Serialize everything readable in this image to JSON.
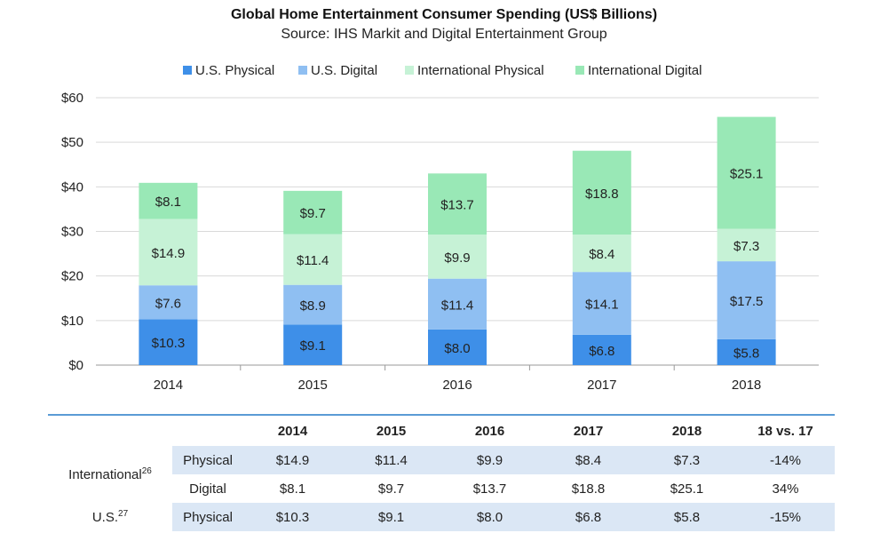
{
  "chart_data": {
    "type": "bar",
    "stacked": true,
    "title": "Global Home Entertainment Consumer Spending (US$ Billions)",
    "subtitle": "Source: IHS Markit and Digital Entertainment Group",
    "categories": [
      "2014",
      "2015",
      "2016",
      "2017",
      "2018"
    ],
    "series": [
      {
        "name": "U.S. Physical",
        "color": "#3e8fe8",
        "values": [
          10.3,
          9.1,
          8.0,
          6.8,
          5.8
        ],
        "labels": [
          "$10.3",
          "$9.1",
          "$8.0",
          "$6.8",
          "$5.8"
        ]
      },
      {
        "name": "U.S. Digital",
        "color": "#8fbff2",
        "values": [
          7.6,
          8.9,
          11.4,
          14.1,
          17.5
        ],
        "labels": [
          "$7.6",
          "$8.9",
          "$11.4",
          "$14.1",
          "$17.5"
        ]
      },
      {
        "name": "International Physical",
        "color": "#c6f2d6",
        "values": [
          14.9,
          11.4,
          9.9,
          8.4,
          7.3
        ],
        "labels": [
          "$14.9",
          "$11.4",
          "$9.9",
          "$8.4",
          "$7.3"
        ]
      },
      {
        "name": "International Digital",
        "color": "#99e8b6",
        "values": [
          8.1,
          9.7,
          13.7,
          18.8,
          25.1
        ],
        "labels": [
          "$8.1",
          "$9.7",
          "$13.7",
          "$18.8",
          "$25.1"
        ]
      }
    ],
    "ylim": [
      0,
      60
    ],
    "yticks": [
      0,
      10,
      20,
      30,
      40,
      50,
      60
    ],
    "ytick_labels": [
      "$0",
      "$10",
      "$20",
      "$30",
      "$40",
      "$50",
      "$60"
    ],
    "grid": true,
    "legend_position": "top"
  },
  "table": {
    "headers": [
      "2014",
      "2015",
      "2016",
      "2017",
      "2018",
      "18 vs. 17"
    ],
    "groups": [
      {
        "label": "International",
        "note": "26",
        "rows": [
          {
            "type": "Physical",
            "values": [
              "$14.9",
              "$11.4",
              "$9.9",
              "$8.4",
              "$7.3",
              "-14%"
            ]
          },
          {
            "type": "Digital",
            "values": [
              "$8.1",
              "$9.7",
              "$13.7",
              "$18.8",
              "$25.1",
              "34%"
            ]
          }
        ]
      },
      {
        "label": "U.S.",
        "note": "27",
        "rows": [
          {
            "type": "Physical",
            "values": [
              "$10.3",
              "$9.1",
              "$8.0",
              "$6.8",
              "$5.8",
              "-15%"
            ]
          }
        ]
      }
    ]
  }
}
